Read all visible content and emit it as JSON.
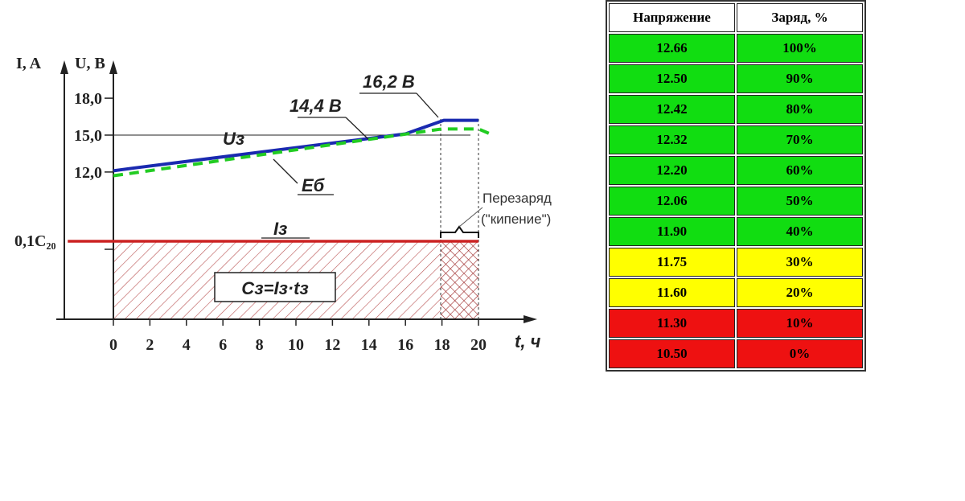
{
  "chart_data": {
    "type": "line",
    "y_axis_labels": {
      "current": "I, A",
      "voltage": "U, B"
    },
    "x_axis_label": "t, ч",
    "x_ticks": [
      0,
      2,
      4,
      6,
      8,
      10,
      12,
      14,
      16,
      18,
      20
    ],
    "y_ticks": [
      "18,0",
      "15,0",
      "12,0"
    ],
    "y_tick_values": [
      18,
      15,
      12
    ],
    "current_tick": "0,1C₂₀",
    "series": [
      {
        "name": "Uз",
        "color": "#1a2ab0",
        "x": [
          0,
          1,
          16,
          18.1,
          20
        ],
        "y": [
          12.1,
          12.3,
          15.1,
          16.2,
          16.2
        ]
      },
      {
        "name": "Еб",
        "color": "#22cc22",
        "x": [
          0,
          1,
          18,
          20,
          20.8
        ],
        "y": [
          11.7,
          11.9,
          15.5,
          15.5,
          15.0
        ]
      },
      {
        "name": "Iз",
        "color": "#cc2222",
        "x": [
          -2.5,
          20
        ],
        "y": [
          0.1,
          0.1
        ]
      }
    ],
    "annotations": {
      "u_max": "16,2 В",
      "u_gas": "14,4 В",
      "capacity": "Сз=Iз·tз",
      "overcharge_line1": "Перезаряд",
      "overcharge_line2": "(\"кипение\")"
    }
  },
  "table": {
    "headers": [
      "Напряжение",
      "Заряд, %"
    ],
    "rows": [
      {
        "voltage": "12.66",
        "charge": "100%",
        "color": "#11dd11"
      },
      {
        "voltage": "12.50",
        "charge": "90%",
        "color": "#11dd11"
      },
      {
        "voltage": "12.42",
        "charge": "80%",
        "color": "#11dd11"
      },
      {
        "voltage": "12.32",
        "charge": "70%",
        "color": "#11dd11"
      },
      {
        "voltage": "12.20",
        "charge": "60%",
        "color": "#11dd11"
      },
      {
        "voltage": "12.06",
        "charge": "50%",
        "color": "#11dd11"
      },
      {
        "voltage": "11.90",
        "charge": "40%",
        "color": "#11dd11"
      },
      {
        "voltage": "11.75",
        "charge": "30%",
        "color": "#ffff00"
      },
      {
        "voltage": "11.60",
        "charge": "20%",
        "color": "#ffff00"
      },
      {
        "voltage": "11.30",
        "charge": "10%",
        "color": "#ee1111"
      },
      {
        "voltage": "10.50",
        "charge": "0%",
        "color": "#ee1111"
      }
    ]
  }
}
